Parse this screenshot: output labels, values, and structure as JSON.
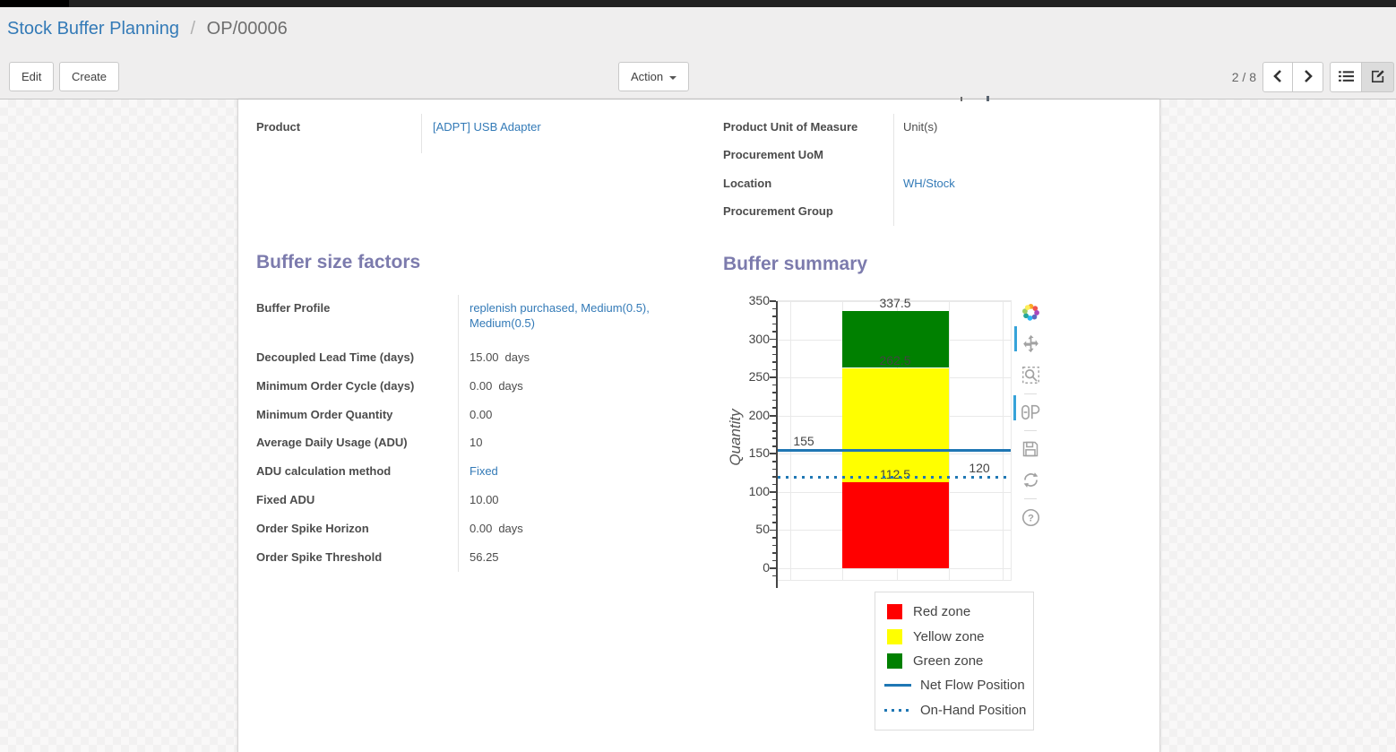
{
  "breadcrumb": {
    "parent": "Stock Buffer Planning",
    "separator": "/",
    "current": "OP/00006"
  },
  "buttons": {
    "edit": "Edit",
    "create": "Create",
    "action": "Action"
  },
  "pager": {
    "counter": "2 / 8"
  },
  "colors": {
    "link": "#337ab7",
    "section_title": "#7c7bad",
    "accent_blue": "#1f77b4"
  },
  "sheet": {
    "fields_left": [
      {
        "label": "Product",
        "value": "[ADPT] USB Adapter",
        "link": true,
        "unit": ""
      }
    ],
    "fields_right": [
      {
        "label": "Product Unit of Measure",
        "value": "Unit(s)",
        "link": false,
        "unit": ""
      },
      {
        "label": "Procurement UoM",
        "value": "",
        "link": false,
        "unit": ""
      },
      {
        "label": "Location",
        "value": "WH/Stock",
        "link": true,
        "unit": ""
      },
      {
        "label": "Procurement Group",
        "value": "",
        "link": false,
        "unit": ""
      }
    ],
    "sections": {
      "buffer_size_factors": "Buffer size factors",
      "buffer_summary": "Buffer summary"
    },
    "buffer_fields": [
      {
        "label": "Buffer Profile",
        "value": "replenish purchased, Medium(0.5), Medium(0.5)",
        "link": true,
        "unit": ""
      },
      {
        "label": "Decoupled Lead Time (days)",
        "value": "15.00",
        "link": false,
        "unit": "days"
      },
      {
        "label": "Minimum Order Cycle (days)",
        "value": "0.00",
        "link": false,
        "unit": "days"
      },
      {
        "label": "Minimum Order Quantity",
        "value": "0.00",
        "link": false,
        "unit": ""
      },
      {
        "label": "Average Daily Usage (ADU)",
        "value": "10",
        "link": false,
        "unit": ""
      },
      {
        "label": "ADU calculation method",
        "value": "Fixed",
        "link": true,
        "unit": ""
      },
      {
        "label": "Fixed ADU",
        "value": "10.00",
        "link": false,
        "unit": ""
      },
      {
        "label": "Order Spike Horizon",
        "value": "0.00",
        "link": false,
        "unit": "days"
      },
      {
        "label": "Order Spike Threshold",
        "value": "56.25",
        "link": false,
        "unit": ""
      }
    ]
  },
  "chart_data": {
    "type": "bar",
    "title": "Buffer summary",
    "xlabel": "",
    "ylabel": "Quantity",
    "ylim": [
      0,
      350
    ],
    "ytick_step": 50,
    "grid": true,
    "legend_position": "bottom-right",
    "zones": [
      {
        "name": "Red zone",
        "from": 0,
        "to": 112.5,
        "color": "#ff0000"
      },
      {
        "name": "Yellow zone",
        "from": 112.5,
        "to": 262.5,
        "color": "#ffff00"
      },
      {
        "name": "Green zone",
        "from": 262.5,
        "to": 337.5,
        "color": "#008000"
      }
    ],
    "bar_boundary_labels": [
      {
        "value": 112.5,
        "text": "112.5"
      },
      {
        "value": 262.5,
        "text": "262.5"
      },
      {
        "value": 337.5,
        "text": "337.5"
      }
    ],
    "reference_lines": [
      {
        "name": "Net Flow Position",
        "value": 155,
        "label": "155",
        "style": "solid",
        "color": "#1f77b4"
      },
      {
        "name": "On-Hand Position",
        "value": 120,
        "label": "120",
        "style": "dotted",
        "color": "#1f77b4"
      }
    ],
    "legend_items": [
      {
        "label": "Red zone",
        "swatch": "square",
        "color": "#ff0000"
      },
      {
        "label": "Yellow zone",
        "swatch": "square",
        "color": "#ffff00"
      },
      {
        "label": "Green zone",
        "swatch": "square",
        "color": "#008000"
      },
      {
        "label": "Net Flow Position",
        "swatch": "line",
        "color": "#1f77b4"
      },
      {
        "label": "On-Hand Position",
        "swatch": "dots",
        "color": "#1f77b4"
      }
    ]
  },
  "modebar": {
    "icons": [
      "plotly-logo",
      "pan",
      "zoom",
      "compare-hover",
      "save",
      "reset-axes",
      "help"
    ]
  }
}
